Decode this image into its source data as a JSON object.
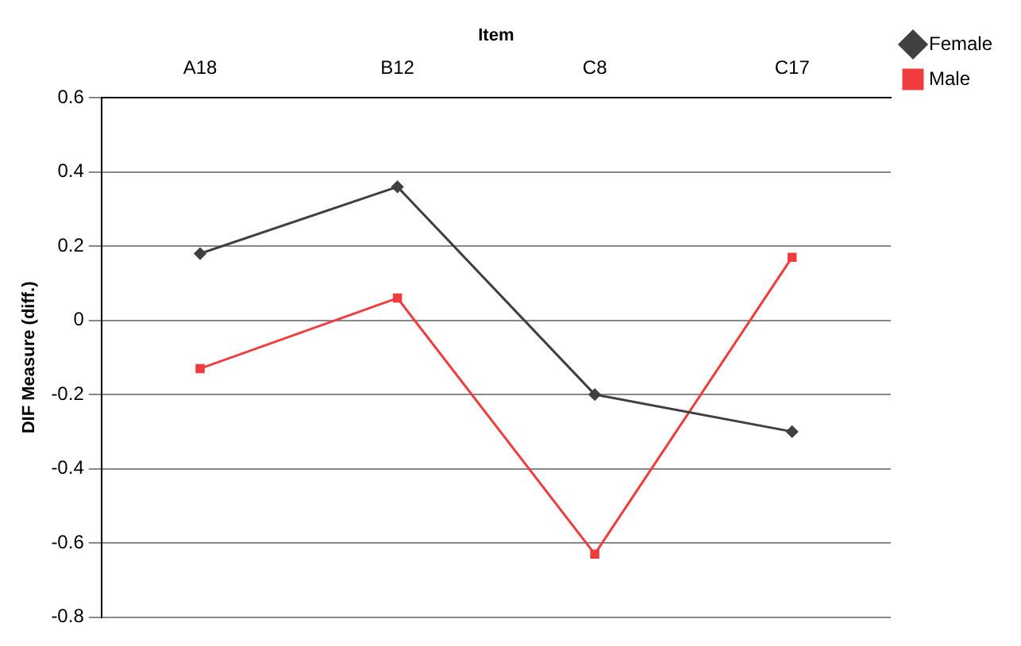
{
  "chart_data": {
    "type": "line",
    "xlabel": "Item",
    "ylabel": "DIF Measure (diff.)",
    "categories": [
      "A18",
      "B12",
      "C8",
      "C17"
    ],
    "series": [
      {
        "name": "Female",
        "color": "#404040",
        "marker": "diamond",
        "values": [
          0.18,
          0.36,
          -0.2,
          -0.3
        ]
      },
      {
        "name": "Male",
        "color": "#f03c3c",
        "marker": "square",
        "values": [
          -0.13,
          0.06,
          -0.63,
          0.17
        ]
      }
    ],
    "ylim": [
      -0.8,
      0.6
    ],
    "yticks": [
      -0.8,
      -0.6,
      -0.4,
      -0.2,
      0,
      0.2,
      0.4,
      0.6
    ],
    "grid": "y",
    "legend": "right",
    "line_style": "solid"
  }
}
